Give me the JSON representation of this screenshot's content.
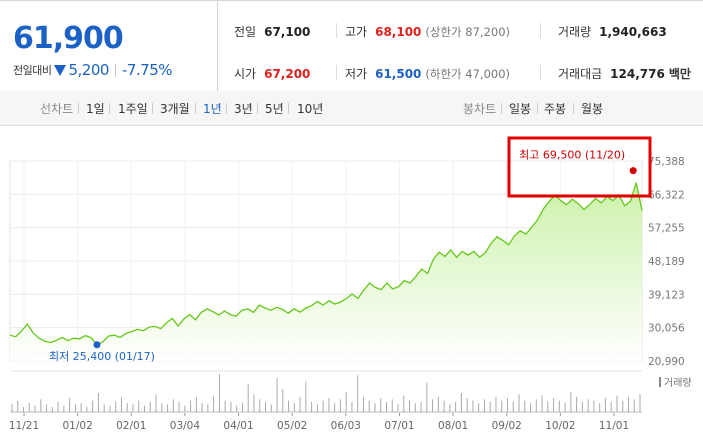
{
  "summary": {
    "price": "61,900",
    "change_label": "전일대비",
    "change_amount": "5,200",
    "change_percent": "-7.75%",
    "prev_close_label": "전일",
    "prev_close": "67,100",
    "high_label": "고가",
    "high": "68,100",
    "upper_limit": "(상한가 87,200)",
    "volume_label": "거래량",
    "volume": "1,940,663",
    "open_label": "시가",
    "open": "67,200",
    "low_label": "저가",
    "low": "61,500",
    "lower_limit": "(하한가 47,000)",
    "amount_label": "거래대금",
    "amount": "124,776",
    "amount_unit": "백만"
  },
  "toolbar": {
    "line_chart_label": "선차트",
    "periods": [
      "1일",
      "1주일",
      "3개월",
      "1년",
      "3년",
      "5년",
      "10년"
    ],
    "active_period": "1년",
    "candle_label": "봉차트",
    "candle_periods": [
      "일봉",
      "주봉",
      "월봉"
    ]
  },
  "colors": {
    "up": "#e1201c",
    "down": "#1c62c6",
    "line": "#64c81a",
    "area_top": "#c9f1a5",
    "highlight_box": "#e30000"
  },
  "chart_data": {
    "type": "area",
    "x_tick_labels": [
      "11/21",
      "01/02",
      "02/01",
      "03/04",
      "04/01",
      "05/02",
      "06/03",
      "07/01",
      "08/01",
      "09/02",
      "10/02",
      "11/01"
    ],
    "y_tick_labels": [
      "75,388",
      "66,322",
      "57,255",
      "48,189",
      "39,123",
      "30,056",
      "20,990"
    ],
    "ylim": [
      20990,
      75388
    ],
    "series": [
      {
        "values": [
          28000,
          27600,
          29200,
          31000,
          28600,
          27200,
          26400,
          26000,
          26600,
          27400,
          26500,
          27200,
          27000,
          27900,
          27300,
          25400,
          26200,
          27800,
          28000,
          27400,
          28500,
          29000,
          29600,
          29200,
          30200,
          30400,
          29800,
          31400,
          32600,
          30500,
          32400,
          33600,
          32200,
          34200,
          35200,
          34400,
          33500,
          34600,
          33600,
          33200,
          34800,
          35200,
          34200,
          36200,
          35400,
          34800,
          35600,
          35000,
          34000,
          35200,
          34300,
          35400,
          36000,
          37200,
          36200,
          37400,
          36500,
          37000,
          38000,
          39200,
          38000,
          40200,
          42200,
          41000,
          40400,
          42200,
          40600,
          41200,
          42800,
          42200,
          44000,
          46000,
          44800,
          48600,
          50600,
          49400,
          51200,
          49200,
          50800,
          49800,
          50800,
          49200,
          50500,
          53000,
          54800,
          53800,
          52600,
          55000,
          56400,
          55500,
          57400,
          59400,
          62400,
          64400,
          66200,
          64600,
          63500,
          65000,
          63800,
          62200,
          63600,
          65200,
          64000,
          65800,
          64600,
          66200,
          63200,
          64400,
          69500,
          61900
        ]
      }
    ],
    "annotations": [
      {
        "text": "최고 69,500 (11/20)",
        "value": 69500
      },
      {
        "text": "최저 25,400 (01/17)",
        "value": 25400
      }
    ],
    "volume_label": "거래량",
    "volume": [
      6,
      9,
      4,
      7,
      5,
      10,
      6,
      4,
      8,
      5,
      11,
      6,
      7,
      4,
      9,
      15,
      6,
      5,
      8,
      12,
      7,
      6,
      9,
      5,
      8,
      14,
      7,
      6,
      10,
      8,
      5,
      9,
      12,
      7,
      6,
      13,
      30,
      9,
      8,
      5,
      7,
      22,
      14,
      10,
      8,
      6,
      27,
      18,
      9,
      7,
      12,
      24,
      8,
      6,
      9,
      11,
      7,
      10,
      16,
      8,
      29,
      12,
      9,
      7,
      11,
      8,
      10,
      6,
      13,
      9,
      7,
      8,
      23,
      10,
      12,
      9,
      6,
      8,
      15,
      11,
      9,
      7,
      10,
      8,
      12,
      9,
      11,
      8,
      14,
      9,
      7,
      10,
      13,
      8,
      11,
      9,
      7,
      16,
      12,
      8,
      10,
      9,
      7,
      11,
      8,
      13,
      9,
      12,
      10,
      14
    ],
    "grid": true
  }
}
